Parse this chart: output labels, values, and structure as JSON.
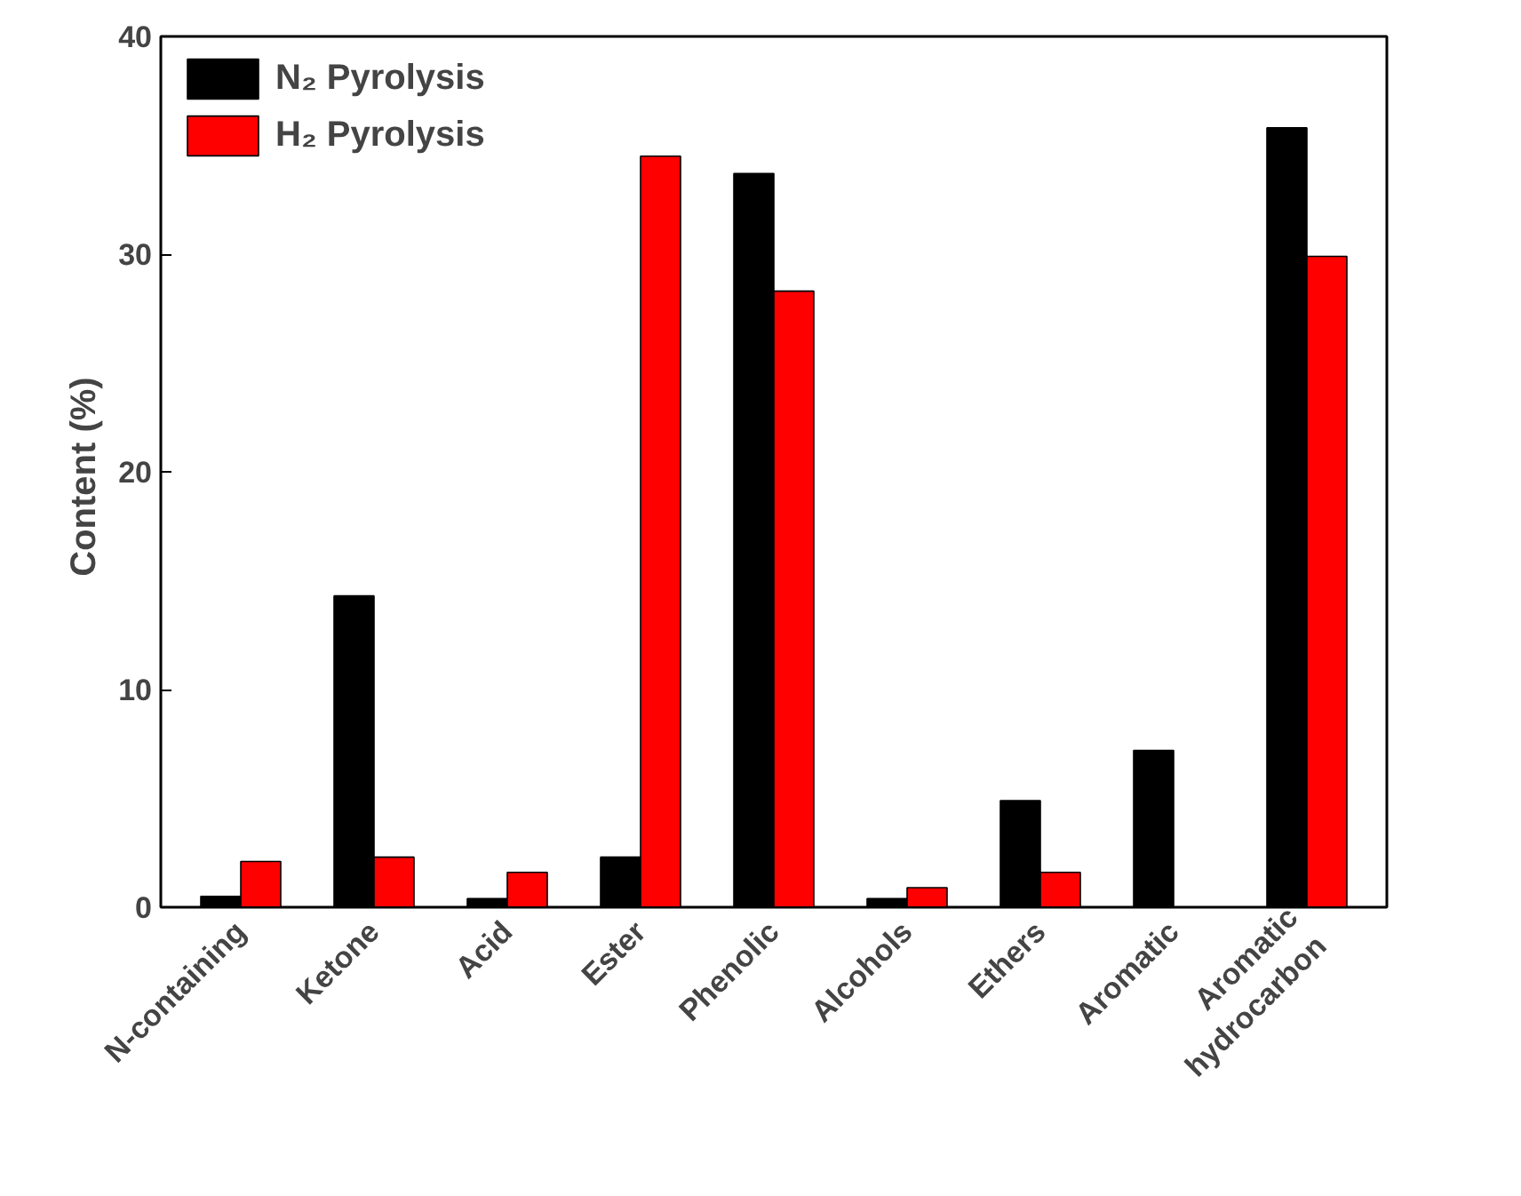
{
  "chart_data": {
    "type": "bar",
    "ylabel": "Content  (%)",
    "categories": [
      "N-containing",
      "Ketone",
      "Acid",
      "Ester",
      "Phenolic",
      "Alcohols",
      "Ethers",
      "Aromatic",
      "Aromatic\nhydrocarbon"
    ],
    "series": [
      {
        "name": "N₂ Pyrolysis",
        "color": "#000000",
        "values": [
          0.5,
          14.3,
          0.4,
          2.3,
          33.7,
          0.4,
          4.9,
          7.2,
          35.8
        ]
      },
      {
        "name": "H₂ Pyrolysis",
        "color": "#ff0000",
        "values": [
          2.1,
          2.3,
          1.6,
          34.5,
          28.3,
          0.9,
          1.6,
          null,
          29.9
        ]
      }
    ],
    "ylim": [
      0,
      40
    ],
    "yticks": [
      0,
      10,
      20,
      30,
      40
    ],
    "grid": false,
    "legend": "top left"
  }
}
